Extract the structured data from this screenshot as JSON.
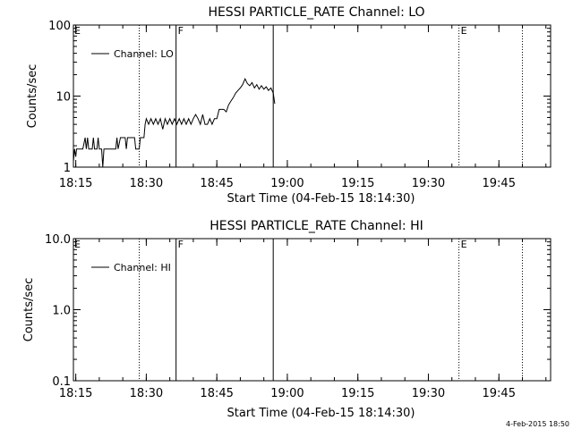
{
  "chart_data": [
    {
      "type": "line",
      "title": "HESSI PARTICLE_RATE Channel: LO",
      "xlabel": "Start Time (04-Feb-15 18:14:30)",
      "ylabel": "Counts/sec",
      "yscale": "log",
      "ylim": [
        1,
        100
      ],
      "xlim": [
        "18:14:30",
        "19:56:00"
      ],
      "x_ticks": [
        "18:15",
        "18:30",
        "18:45",
        "19:00",
        "19:15",
        "19:30",
        "19:45"
      ],
      "y_ticks": [
        "1",
        "10",
        "100"
      ],
      "legend": {
        "label": "Channel: LO",
        "position": "top-left"
      },
      "markers": [
        {
          "time": "18:28:30",
          "style": "dotted",
          "label": ""
        },
        {
          "time": "18:36:20",
          "style": "solid",
          "label": "F"
        },
        {
          "time": "18:57:00",
          "style": "solid",
          "label": ""
        },
        {
          "time": "19:36:30",
          "style": "dotted",
          "label": "E"
        },
        {
          "time": "19:50:00",
          "style": "dotted",
          "label": ""
        }
      ],
      "corner_labels": [
        "E"
      ],
      "series": [
        {
          "name": "Channel: LO",
          "points": [
            [
              "18:14:30",
              1.2
            ],
            [
              "18:14:45",
              1.8
            ],
            [
              "18:15:00",
              1.4
            ],
            [
              "18:15:10",
              1.8
            ],
            [
              "18:16:00",
              1.8
            ],
            [
              "18:16:30",
              1.8
            ],
            [
              "18:17:00",
              2.6
            ],
            [
              "18:17:15",
              1.8
            ],
            [
              "18:17:30",
              2.6
            ],
            [
              "18:17:45",
              1.8
            ],
            [
              "18:18:30",
              1.8
            ],
            [
              "18:18:45",
              2.6
            ],
            [
              "18:19:00",
              1.8
            ],
            [
              "18:19:30",
              1.8
            ],
            [
              "18:19:45",
              2.6
            ],
            [
              "18:20:00",
              1.8
            ],
            [
              "18:20:30",
              1.8
            ],
            [
              "18:20:45",
              1.0
            ],
            [
              "18:21:00",
              1.8
            ],
            [
              "18:22:30",
              1.8
            ],
            [
              "18:23:30",
              1.8
            ],
            [
              "18:23:45",
              2.6
            ],
            [
              "18:24:00",
              1.8
            ],
            [
              "18:24:30",
              2.6
            ],
            [
              "18:25:30",
              2.6
            ],
            [
              "18:25:45",
              1.8
            ],
            [
              "18:26:00",
              2.6
            ],
            [
              "18:27:30",
              2.6
            ],
            [
              "18:27:45",
              1.8
            ],
            [
              "18:28:30",
              1.8
            ],
            [
              "18:28:45",
              2.6
            ],
            [
              "18:29:30",
              2.6
            ],
            [
              "18:29:45",
              4.0
            ],
            [
              "18:30:00",
              4.8
            ],
            [
              "18:30:30",
              4.0
            ],
            [
              "18:31:00",
              4.8
            ],
            [
              "18:31:30",
              4.0
            ],
            [
              "18:32:00",
              4.8
            ],
            [
              "18:32:30",
              4.0
            ],
            [
              "18:33:00",
              4.8
            ],
            [
              "18:33:30",
              3.4
            ],
            [
              "18:34:00",
              4.8
            ],
            [
              "18:34:30",
              4.0
            ],
            [
              "18:35:00",
              4.8
            ],
            [
              "18:35:30",
              4.0
            ],
            [
              "18:36:00",
              4.8
            ],
            [
              "18:36:30",
              4.0
            ],
            [
              "18:37:00",
              4.8
            ],
            [
              "18:37:30",
              4.0
            ],
            [
              "18:38:00",
              4.8
            ],
            [
              "18:38:30",
              4.0
            ],
            [
              "18:39:00",
              4.8
            ],
            [
              "18:39:30",
              4.0
            ],
            [
              "18:40:00",
              4.8
            ],
            [
              "18:40:30",
              5.5
            ],
            [
              "18:41:00",
              4.8
            ],
            [
              "18:41:30",
              4.0
            ],
            [
              "18:42:00",
              5.5
            ],
            [
              "18:42:30",
              4.0
            ],
            [
              "18:43:00",
              4.0
            ],
            [
              "18:43:30",
              4.8
            ],
            [
              "18:44:00",
              4.0
            ],
            [
              "18:44:30",
              4.8
            ],
            [
              "18:45:00",
              4.8
            ],
            [
              "18:45:30",
              6.5
            ],
            [
              "18:46:00",
              6.5
            ],
            [
              "18:46:30",
              6.5
            ],
            [
              "18:47:00",
              6.0
            ],
            [
              "18:47:30",
              7.5
            ],
            [
              "18:48:00",
              8.5
            ],
            [
              "18:48:30",
              9.5
            ],
            [
              "18:49:00",
              11.0
            ],
            [
              "18:49:30",
              12.0
            ],
            [
              "18:50:00",
              13.0
            ],
            [
              "18:50:30",
              14.5
            ],
            [
              "18:51:00",
              17.5
            ],
            [
              "18:51:30",
              15.0
            ],
            [
              "18:52:00",
              14.0
            ],
            [
              "18:52:30",
              15.5
            ],
            [
              "18:53:00",
              13.0
            ],
            [
              "18:53:30",
              14.5
            ],
            [
              "18:54:00",
              12.5
            ],
            [
              "18:54:30",
              14.0
            ],
            [
              "18:55:00",
              12.5
            ],
            [
              "18:55:30",
              13.5
            ],
            [
              "18:56:00",
              12.0
            ],
            [
              "18:56:30",
              13.0
            ],
            [
              "18:57:00",
              11.0
            ],
            [
              "18:57:20",
              7.8
            ]
          ]
        }
      ]
    },
    {
      "type": "line",
      "title": "HESSI PARTICLE_RATE Channel: HI",
      "xlabel": "Start Time (04-Feb-15 18:14:30)",
      "ylabel": "Counts/sec",
      "yscale": "log",
      "ylim": [
        0.1,
        10
      ],
      "xlim": [
        "18:14:30",
        "19:56:00"
      ],
      "x_ticks": [
        "18:15",
        "18:30",
        "18:45",
        "19:00",
        "19:15",
        "19:30",
        "19:45"
      ],
      "y_ticks": [
        "0.1",
        "1.0",
        "10.0"
      ],
      "legend": {
        "label": "Channel: HI",
        "position": "top-left"
      },
      "markers": [
        {
          "time": "18:28:30",
          "style": "dotted",
          "label": ""
        },
        {
          "time": "18:36:20",
          "style": "solid",
          "label": "F"
        },
        {
          "time": "18:57:00",
          "style": "solid",
          "label": ""
        },
        {
          "time": "19:36:30",
          "style": "dotted",
          "label": "E"
        },
        {
          "time": "19:50:00",
          "style": "dotted",
          "label": ""
        }
      ],
      "corner_labels": [
        "E"
      ],
      "series": [
        {
          "name": "Channel: HI",
          "points": []
        }
      ]
    }
  ],
  "footer": {
    "timestamp": "4-Feb-2015 18:50"
  }
}
